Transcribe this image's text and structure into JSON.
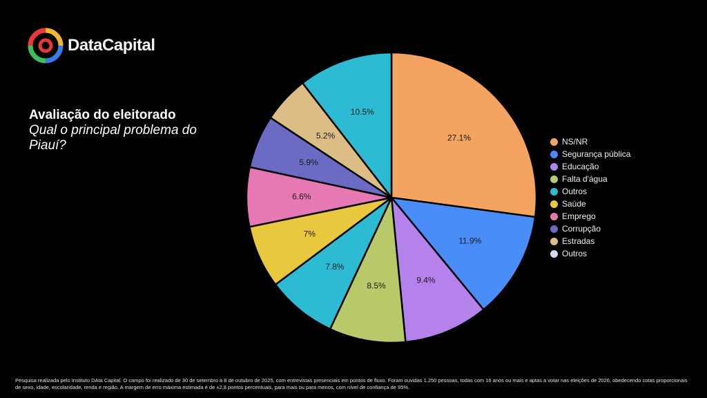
{
  "brand": {
    "name": "DataCapital"
  },
  "heading": {
    "title": "Avaliação do eleitorado",
    "subtitle": "Qual o principal problema do Piauí?"
  },
  "chart_data": {
    "type": "pie",
    "categories": [
      "NS/NR",
      "Segurança pública",
      "Educação",
      "Falta d'água",
      "Outros",
      "Saúde",
      "Emprego",
      "Corrupção",
      "Estradas",
      "Outros"
    ],
    "values": [
      27.1,
      11.9,
      9.4,
      8.5,
      7.8,
      7,
      6.6,
      5.9,
      5.2,
      10.5
    ],
    "labels": [
      "27.1%",
      "11.9%",
      "9.4%",
      "8.5%",
      "7.8%",
      "7%",
      "6.6%",
      "5.9%",
      "5.2%",
      "10.5%"
    ],
    "slice_order": [
      0,
      1,
      2,
      3,
      4,
      5,
      6,
      7,
      8,
      4
    ],
    "colors": [
      "#F4A460",
      "#4A8DF8",
      "#B482EA",
      "#B8C96A",
      "#2DBBD3",
      "#E8C83E",
      "#E678B4",
      "#6B6BC4",
      "#DDBD86",
      "#2DBBD3"
    ],
    "legend": [
      "NS/NR",
      "Segurança pública",
      "Educação",
      "Falta d'água",
      "Outros",
      "Saúde",
      "Emprego",
      "Corrupção",
      "Estradas",
      "Outros"
    ],
    "legend_colors": [
      "#F4A460",
      "#4A8DF8",
      "#B482EA",
      "#B8C96A",
      "#2DBBD3",
      "#E8C83E",
      "#E678B4",
      "#6B6BC4",
      "#DDBD86",
      "#D6DCF0"
    ],
    "legend_position": "right"
  },
  "footnote": "Pesquisa realizada pelo Instituto DAta Capital. O campo foi realizado de 30 de setembro a 8 de outubro de 2025, com entrevistas presenciais em pontos de fluxo. Foram ouvidas 1.250 pessoas, todas com 16 anos ou mais e aptas a votar nas eleições de 2026, obedecendo cotas proporcionais de sexo, idade, escolaridade, renda e região. A margem de erro máxima estimada é de ±2,8 pontos percentuais, para mais ou para menos, com nível de confiança de 95%."
}
